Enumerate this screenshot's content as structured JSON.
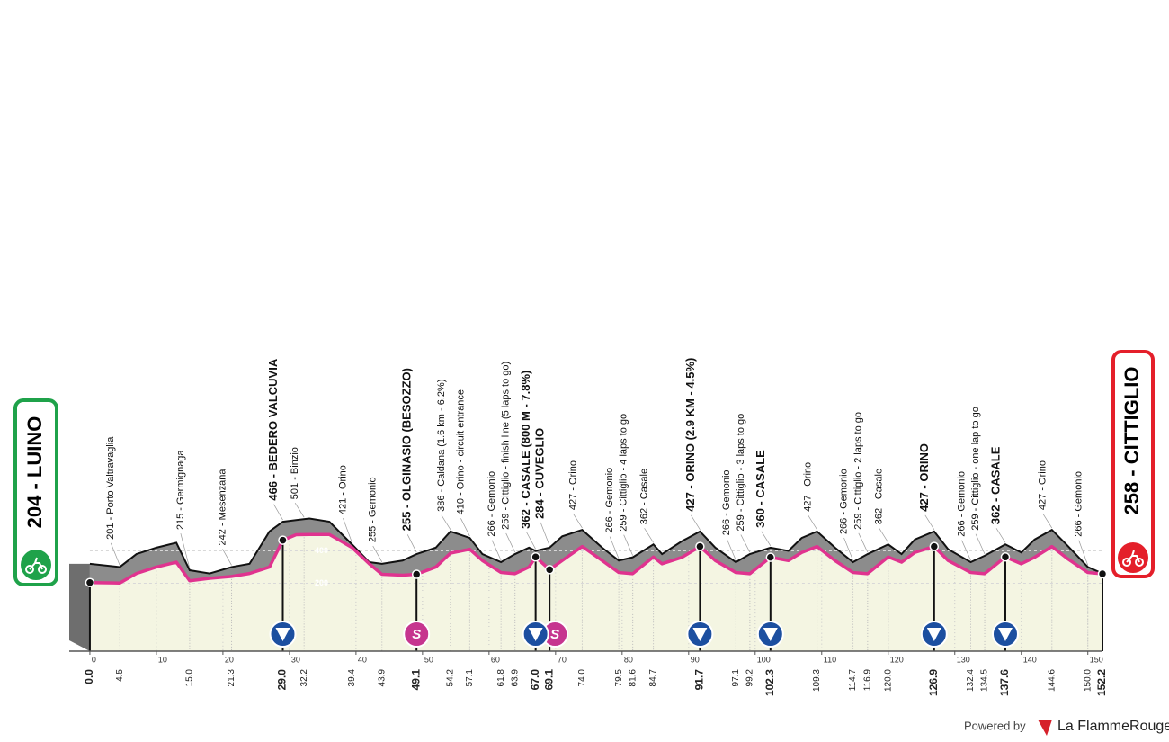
{
  "chart_data": {
    "type": "elevation-profile",
    "start": "204 - LUINO",
    "finish": "258 - CITTIGLIO",
    "xlim": [
      -3.1,
      152.2
    ],
    "ylim": [
      -220,
      1970
    ],
    "xticks": [
      0,
      10,
      20,
      30,
      40,
      50,
      60,
      70,
      80,
      90,
      100,
      110,
      120,
      130,
      140,
      150
    ],
    "yticks": [
      200,
      400
    ],
    "grid": true,
    "x": [
      0,
      4.5,
      7,
      10,
      13,
      15,
      18,
      21.3,
      24,
      27,
      29,
      31,
      33,
      36,
      39.4,
      42,
      43.9,
      47,
      49.1,
      52,
      54.2,
      57.1,
      59,
      61.8,
      63.9,
      66,
      67,
      69.1,
      71,
      74,
      77,
      79.5,
      81.6,
      84.7,
      86,
      89,
      91.7,
      94,
      97.1,
      99.2,
      102.3,
      105,
      107,
      109.3,
      112,
      114.7,
      116.9,
      120,
      122,
      124,
      126.9,
      129,
      132.4,
      134.5,
      137.6,
      140,
      142,
      144.6,
      147,
      150,
      152.2
    ],
    "series": [
      {
        "color": "#8c8c8c",
        "values": [
          320,
          300,
          380,
          420,
          450,
          280,
          260,
          300,
          320,
          520,
          580,
          590,
          600,
          580,
          440,
          330,
          320,
          340,
          380,
          420,
          520,
          480,
          380,
          330,
          380,
          420,
          400,
          420,
          490,
          530,
          420,
          340,
          360,
          440,
          380,
          460,
          520,
          420,
          330,
          380,
          420,
          400,
          480,
          520,
          420,
          330,
          380,
          440,
          380,
          470,
          520,
          410,
          330,
          370,
          440,
          390,
          470,
          530,
          430,
          300,
          260
        ]
      },
      {
        "color": "#e0338f",
        "values": [
          204,
          201,
          260,
          300,
          330,
          215,
          230,
          242,
          260,
          300,
          466,
          500,
          501,
          501,
          421,
          320,
          255,
          250,
          255,
          300,
          386,
          410,
          340,
          266,
          259,
          300,
          362,
          284,
          340,
          427,
          340,
          266,
          259,
          362,
          320,
          360,
          427,
          340,
          266,
          259,
          360,
          340,
          390,
          427,
          340,
          266,
          259,
          362,
          330,
          390,
          427,
          340,
          266,
          259,
          362,
          320,
          360,
          427,
          350,
          266,
          258
        ]
      }
    ],
    "km": [
      {
        "value": 0,
        "label": "0.0"
      },
      4.5,
      {
        "value": 15,
        "label": "15.0"
      },
      21.3,
      {
        "value": 29,
        "label": "29.0"
      },
      32.2,
      39.4,
      43.9,
      49.1,
      54.2,
      57.1,
      61.8,
      63.9,
      {
        "value": 67,
        "label": "67.0"
      },
      69.1,
      {
        "value": 74,
        "label": "74.0"
      },
      79.5,
      81.6,
      84.7,
      91.7,
      97.1,
      99.2,
      102.3,
      109.3,
      114.7,
      116.9,
      {
        "value": 120,
        "label": "120.0"
      },
      126.9,
      132.4,
      134.5,
      137.6,
      144.6,
      {
        "value": 150,
        "label": "150.0"
      },
      152.2
    ],
    "bold": [
      true,
      false,
      false,
      false,
      true,
      false,
      false,
      false,
      true,
      false,
      false,
      false,
      false,
      true,
      true,
      false,
      false,
      false,
      false,
      true,
      false,
      false,
      true,
      false,
      false,
      false,
      false,
      true,
      false,
      false,
      true,
      false,
      false,
      true
    ],
    "waypoints": [
      null,
      "201 - Porto Valtravaglia",
      "215 - Germignaga",
      "242 - Mesenzana",
      "466 - BEDERO VALCUVIA",
      "501 - Binzio",
      "421 - Orino",
      "255 - Gemonio",
      "255 - OLGINASIO (BESOZZO)",
      "386 - Caldana (1.6 km - 6.2%)",
      "410 - Orino - circuit entrance",
      "266 - Gemonio",
      "259 - Cittiglio - finish line (5 laps to go)",
      "362 - CASALE (800 M - 7.8%)",
      "284 - CUVEGLIO",
      "427 - Orino",
      "266 - Gemonio",
      "259 - Cittiglio - 4 laps to go",
      "362 - Casale",
      "427 - ORINO (2.9 KM - 4.5%)",
      "266 - Gemonio",
      "259 - Cittiglio - 3 laps to go",
      "360 - CASALE",
      "427 - Orino",
      "266 - Gemonio",
      "259 - Cittiglio - 2 laps to go",
      "362 - Casale",
      "427 - ORINO",
      "266 - Gemonio",
      "259 - Cittiglio - one lap to go",
      "362 - CASALE",
      "427 - Orino",
      "266 - Gemonio",
      null
    ],
    "climbs": [
      29.0,
      67.0,
      91.7,
      102.3,
      126.9,
      137.6
    ],
    "sprints": [
      49.1,
      69.1
    ],
    "sprint_symbol": "S"
  },
  "footer": {
    "powered_by": "Powered by",
    "brand": "La FlammeRouge"
  }
}
